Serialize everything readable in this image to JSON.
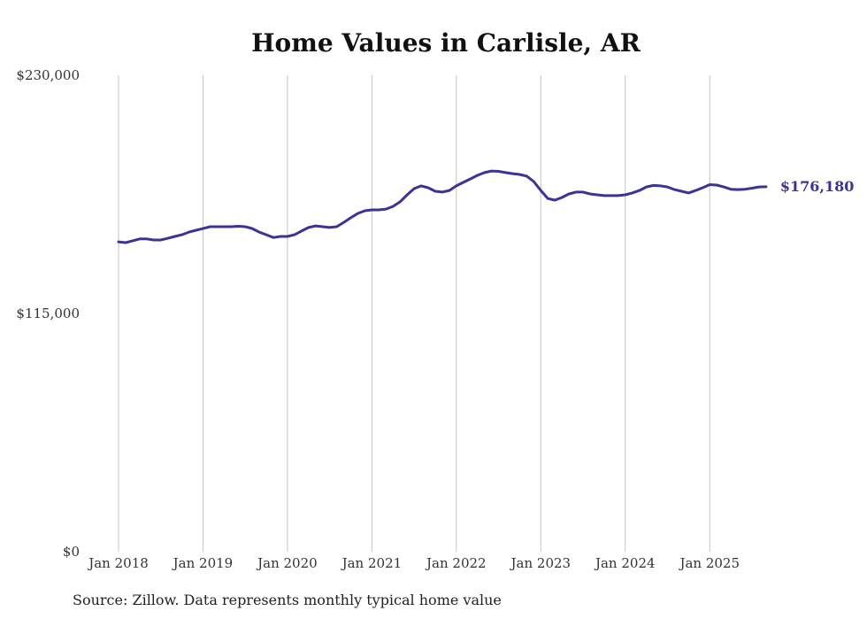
{
  "chart_data": {
    "type": "line",
    "title": "Home Values in Carlisle, AR",
    "xlabel": "",
    "ylabel": "",
    "ylim": [
      0,
      230000
    ],
    "yticks": [
      "$230,000",
      "$115,000",
      "$0"
    ],
    "ytick_values": [
      230000,
      115000,
      0
    ],
    "xticks": [
      "Jan 2018",
      "Jan 2019",
      "Jan 2020",
      "Jan 2021",
      "Jan 2022",
      "Jan 2023",
      "Jan 2024",
      "Jan 2025"
    ],
    "x_start": "2018-01",
    "x_frequency": "monthly",
    "grid": "vertical at each January",
    "series": [
      {
        "name": "Typical home value",
        "color": "#3b3494",
        "values": [
          149600,
          149200,
          150100,
          151000,
          151000,
          150500,
          150500,
          151300,
          152200,
          153000,
          154300,
          155200,
          156000,
          156900,
          156900,
          156900,
          156900,
          157100,
          156900,
          156000,
          154300,
          153000,
          151700,
          152200,
          152200,
          153000,
          154800,
          156500,
          157300,
          156900,
          156500,
          156900,
          159000,
          161200,
          163300,
          164600,
          165000,
          165000,
          165400,
          166700,
          168900,
          172300,
          175300,
          176600,
          175700,
          174000,
          173600,
          174400,
          176600,
          178300,
          180000,
          181700,
          183000,
          183800,
          183600,
          183000,
          182500,
          182100,
          181300,
          178700,
          174400,
          170500,
          169700,
          171000,
          172700,
          173600,
          173600,
          172700,
          172300,
          171900,
          171900,
          171900,
          172300,
          173200,
          174400,
          176100,
          176800,
          176600,
          176100,
          174800,
          174000,
          173200,
          174400,
          175700,
          177200,
          177000,
          176100,
          175000,
          174800,
          175000,
          175500,
          176100,
          176180
        ]
      }
    ],
    "end_label": "$176,180"
  },
  "source": "Source: Zillow. Data represents monthly typical home value"
}
